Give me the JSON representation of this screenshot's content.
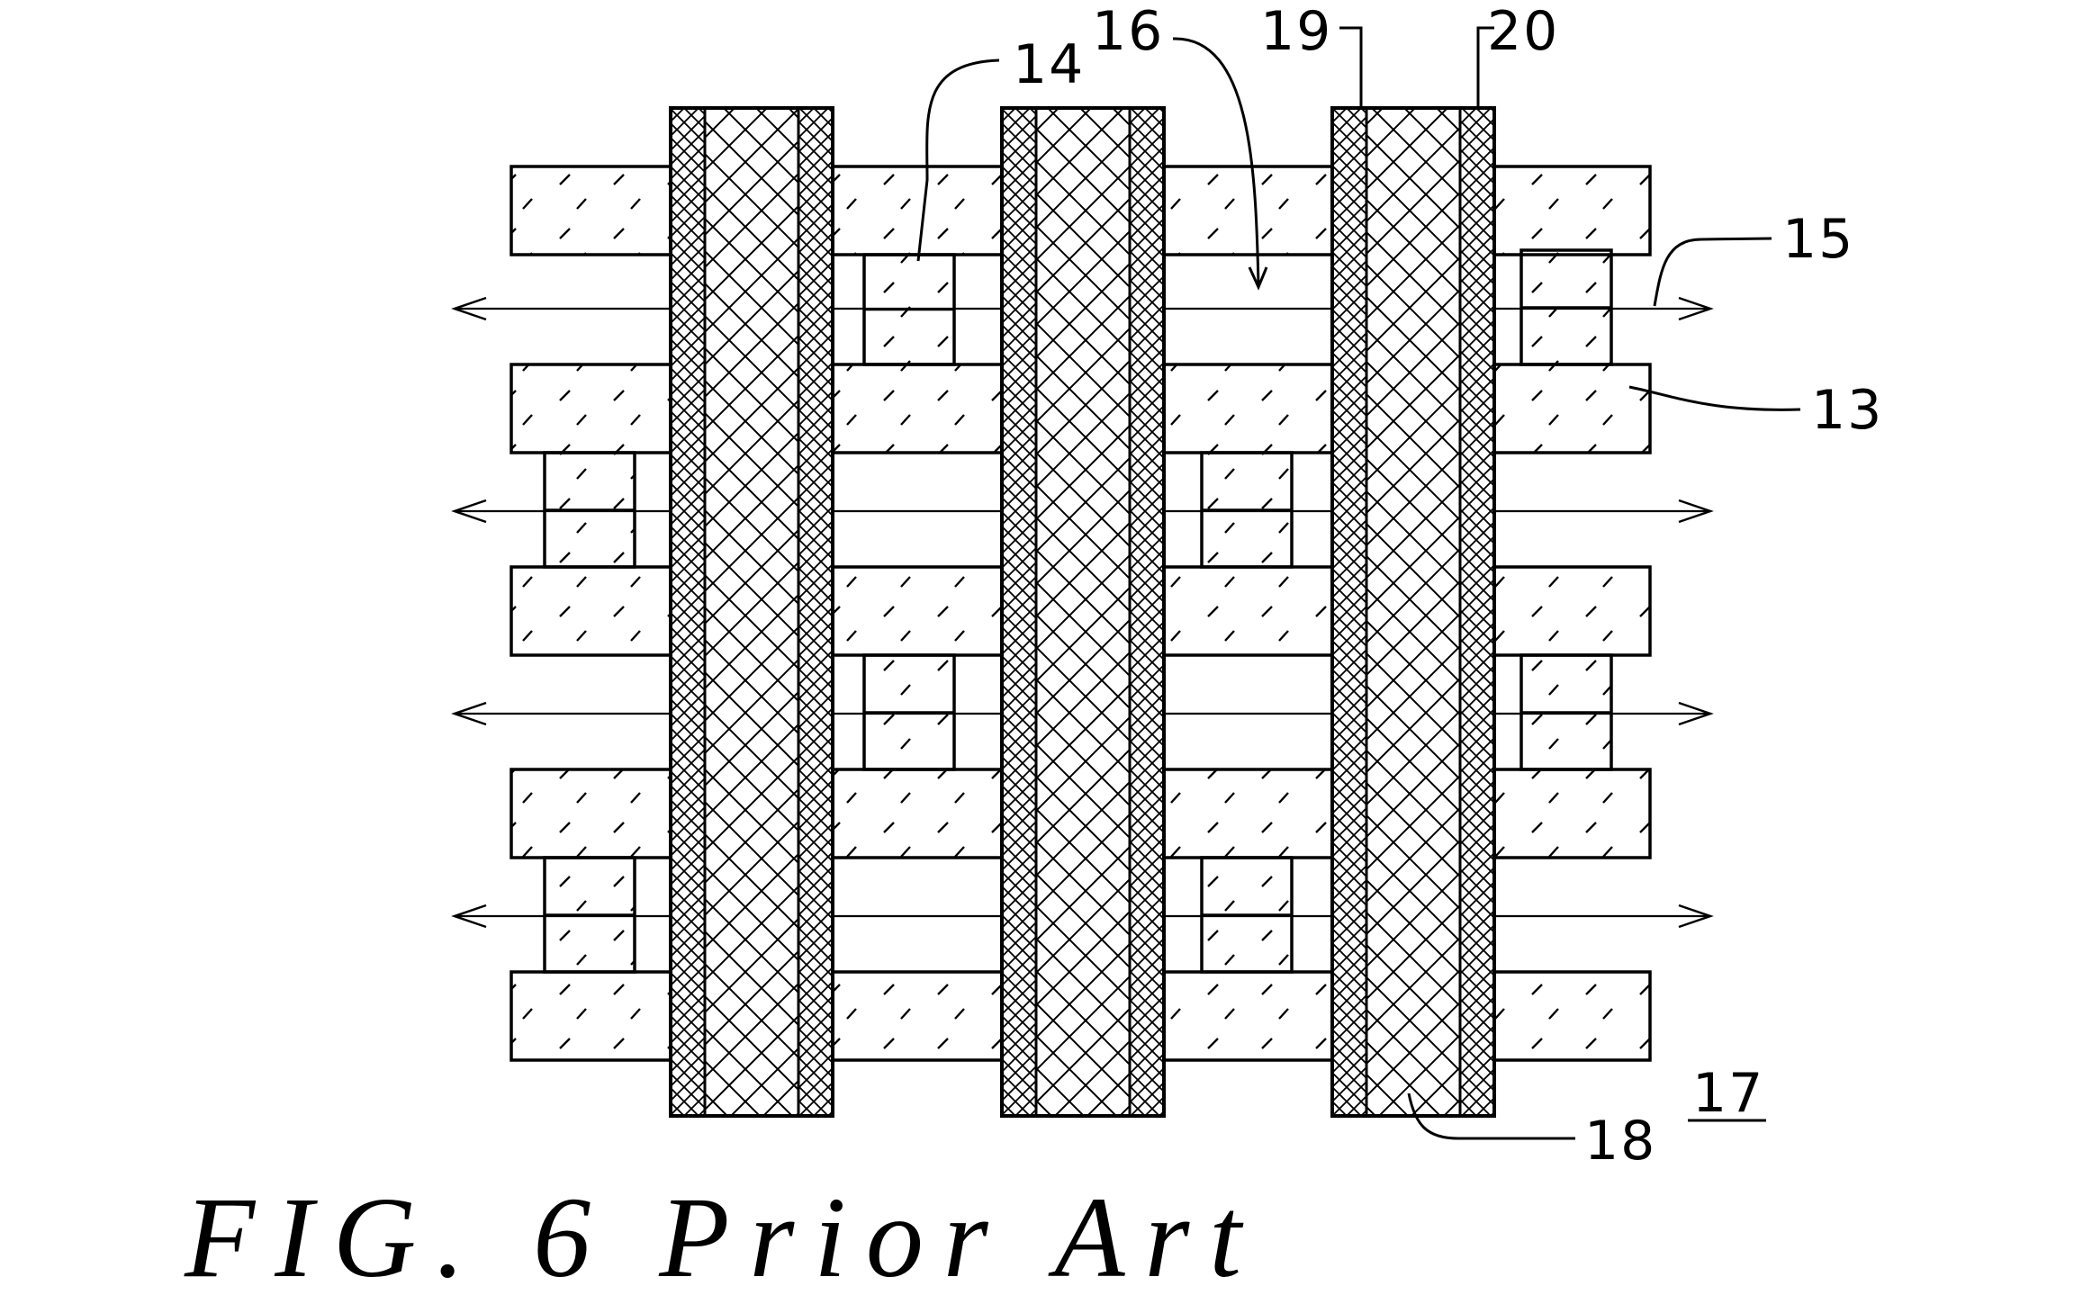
{
  "labels": {
    "l13": "13",
    "l14": "14",
    "l15": "15",
    "l16": "16",
    "l17": "17",
    "l18": "18",
    "l19": "19",
    "l20": "20"
  },
  "caption": "FIG. 6 Prior Art",
  "colors": {
    "ink": "#000000",
    "paper": "#ffffff"
  }
}
